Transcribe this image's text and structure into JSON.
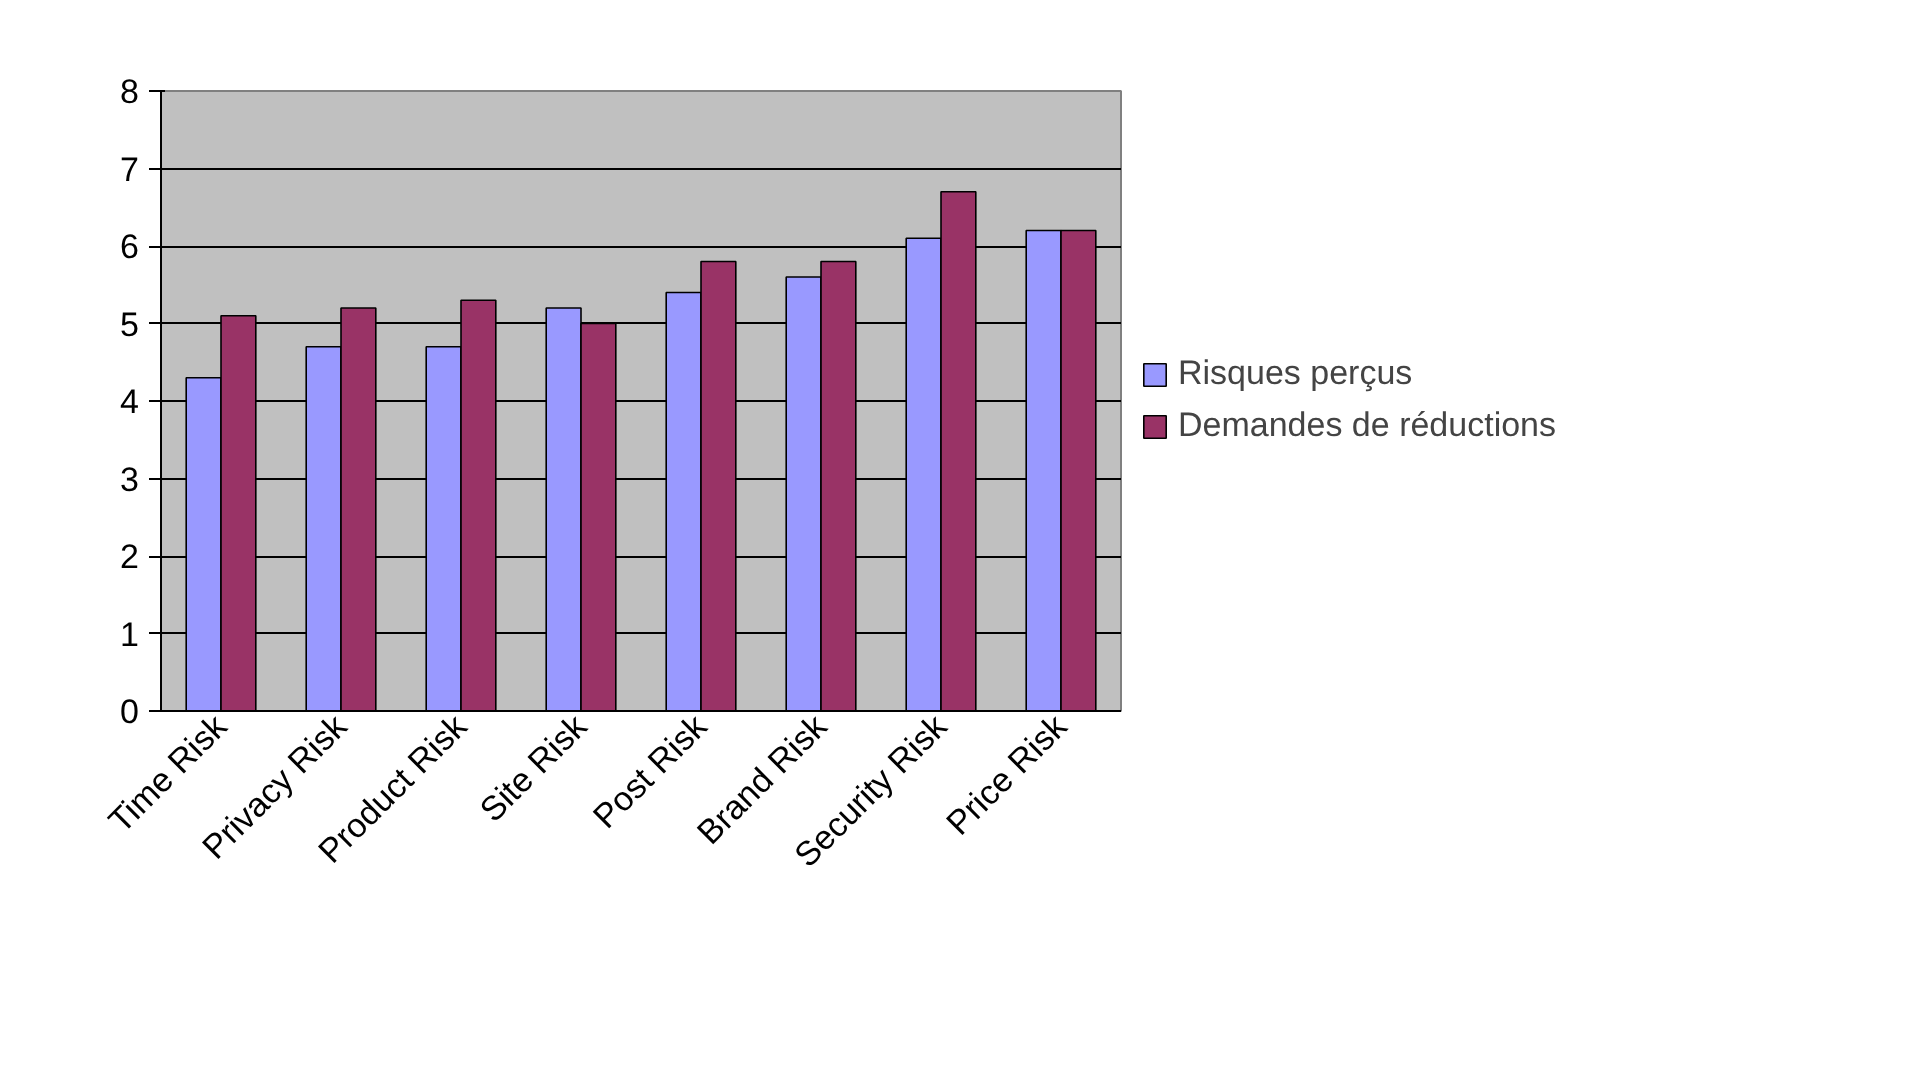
{
  "chart_data": {
    "type": "bar",
    "categories": [
      "Time Risk",
      "Privacy Risk",
      "Product Risk",
      "Site Risk",
      "Post Risk",
      "Brand Risk",
      "Security Risk",
      "Price Risk"
    ],
    "series": [
      {
        "name": "Risques perçus",
        "color": "#9999ff",
        "values": [
          4.3,
          4.7,
          4.7,
          5.2,
          5.4,
          5.6,
          6.1,
          6.2
        ]
      },
      {
        "name": "Demandes de réductions",
        "color": "#993366",
        "values": [
          5.1,
          5.2,
          5.3,
          5.0,
          5.8,
          5.8,
          6.7,
          6.2
        ]
      }
    ],
    "ylim": [
      0,
      8
    ],
    "yticks": [
      0,
      1,
      2,
      3,
      4,
      5,
      6,
      7,
      8
    ],
    "grid": "y",
    "legend": "right"
  }
}
